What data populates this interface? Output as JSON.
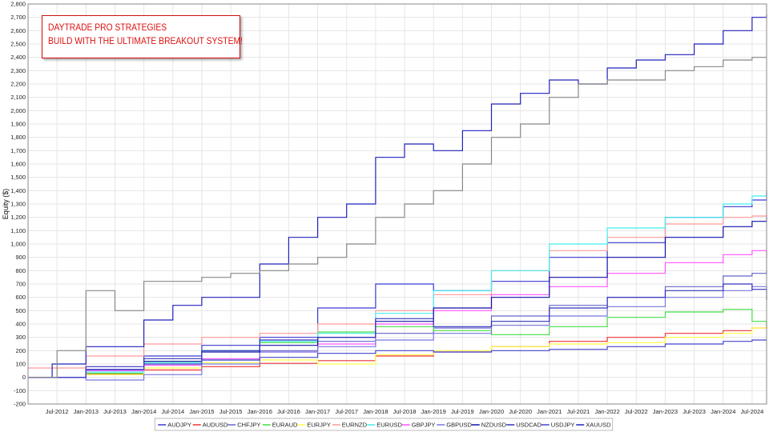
{
  "banner": {
    "line1": "DAYTRADE PRO STRATEGIES",
    "line2": "BUILD WITH THE ULTIMATE BREAKOUT SYSTEM!",
    "color": "#dd1111"
  },
  "chart_data": {
    "type": "line",
    "title": "",
    "xlabel": "",
    "ylabel": "Equity ($)",
    "ylim": [
      -200,
      2800
    ],
    "yticks": [
      -200,
      -100,
      0,
      100,
      200,
      300,
      400,
      500,
      600,
      700,
      800,
      900,
      1000,
      1100,
      1200,
      1300,
      1400,
      1500,
      1600,
      1700,
      1800,
      1900,
      2000,
      2100,
      2200,
      2300,
      2400,
      2500,
      2600,
      2700,
      2800
    ],
    "ytick_labels": [
      "-200",
      "-100",
      "0",
      "100",
      "200",
      "300",
      "400",
      "500",
      "600",
      "700",
      "800",
      "900",
      "1,000",
      "1,100",
      "1,200",
      "1,300",
      "1,400",
      "1,500",
      "1,600",
      "1,700",
      "1,800",
      "1,900",
      "2,000",
      "2,100",
      "2,200",
      "2,300",
      "2,400",
      "2,500",
      "2,600",
      "2,700",
      "2,800"
    ],
    "xlim": [
      "2012-01",
      "2024-10"
    ],
    "xticks": [
      "2012-07",
      "2013-01",
      "2013-07",
      "2014-01",
      "2014-07",
      "2015-01",
      "2015-07",
      "2016-01",
      "2016-07",
      "2017-01",
      "2017-07",
      "2018-01",
      "2018-07",
      "2019-01",
      "2019-07",
      "2020-01",
      "2020-07",
      "2021-01",
      "2021-07",
      "2022-01",
      "2022-07",
      "2023-01",
      "2023-07",
      "2024-01",
      "2024-07"
    ],
    "xtick_labels": [
      "Jul-2012",
      "Jan-2013",
      "Jul-2013",
      "Jan-2014",
      "Jul-2014",
      "Jan-2015",
      "Jul-2015",
      "Jan-2016",
      "Jul-2016",
      "Jan-2017",
      "Jul-2017",
      "Jan-2018",
      "Jul-2018",
      "Jan-2019",
      "Jul-2019",
      "Jan-2020",
      "Jul-2020",
      "Jan-2021",
      "Jul-2021",
      "Jan-2022",
      "Jul-2022",
      "Jan-2023",
      "Jul-2023",
      "Jan-2024",
      "Jul-2024"
    ],
    "grid": true,
    "legend_position": "bottom",
    "series": [
      {
        "name": "AUDJPY",
        "color": "#3a3ad0",
        "x": [
          "2012-01",
          "2013-01",
          "2014-01",
          "2015-01",
          "2016-01",
          "2017-01",
          "2018-01",
          "2019-01",
          "2020-01",
          "2021-01",
          "2022-01",
          "2023-01",
          "2024-01",
          "2024-07",
          "2024-10"
        ],
        "values": [
          0,
          60,
          160,
          240,
          300,
          520,
          700,
          650,
          720,
          900,
          1010,
          1200,
          1280,
          1330,
          1400
        ]
      },
      {
        "name": "AUDUSD",
        "color": "#ee3333",
        "x": [
          "2012-01",
          "2013-01",
          "2014-01",
          "2015-01",
          "2016-01",
          "2017-01",
          "2018-01",
          "2019-01",
          "2020-01",
          "2021-01",
          "2022-01",
          "2023-01",
          "2024-01",
          "2024-07",
          "2024-10"
        ],
        "values": [
          0,
          25,
          55,
          80,
          105,
          125,
          160,
          190,
          230,
          270,
          300,
          330,
          350,
          370,
          380
        ]
      },
      {
        "name": "CHFJPY",
        "color": "#6666cc",
        "x": [
          "2012-01",
          "2013-01",
          "2014-01",
          "2015-01",
          "2016-01",
          "2017-01",
          "2018-01",
          "2019-01",
          "2020-01",
          "2021-01",
          "2022-01",
          "2023-01",
          "2024-01",
          "2024-07",
          "2024-10"
        ],
        "values": [
          0,
          50,
          100,
          130,
          200,
          270,
          330,
          370,
          460,
          540,
          600,
          680,
          760,
          780,
          800
        ]
      },
      {
        "name": "EURAUD",
        "color": "#44dd44",
        "x": [
          "2012-01",
          "2013-01",
          "2014-01",
          "2015-01",
          "2016-01",
          "2017-01",
          "2018-01",
          "2019-01",
          "2020-01",
          "2021-01",
          "2022-01",
          "2023-01",
          "2024-01",
          "2024-07",
          "2024-10"
        ],
        "values": [
          0,
          30,
          120,
          200,
          260,
          340,
          380,
          350,
          320,
          380,
          450,
          490,
          510,
          420,
          380
        ]
      },
      {
        "name": "EURJPY",
        "color": "#ffff44",
        "x": [
          "2012-01",
          "2013-01",
          "2014-01",
          "2015-01",
          "2016-01",
          "2017-01",
          "2018-01",
          "2019-01",
          "2020-01",
          "2021-01",
          "2022-01",
          "2023-01",
          "2024-01",
          "2024-07",
          "2024-10"
        ],
        "values": [
          0,
          20,
          70,
          110,
          130,
          100,
          170,
          200,
          230,
          250,
          260,
          300,
          330,
          370,
          400
        ]
      },
      {
        "name": "EURNZD",
        "color": "#ff9999",
        "x": [
          "2012-01",
          "2013-01",
          "2014-01",
          "2015-01",
          "2016-01",
          "2017-01",
          "2018-01",
          "2019-01",
          "2020-01",
          "2021-01",
          "2022-01",
          "2023-01",
          "2024-01",
          "2024-07",
          "2024-10"
        ],
        "values": [
          70,
          160,
          250,
          300,
          330,
          400,
          500,
          620,
          800,
          950,
          1050,
          1150,
          1200,
          1210,
          1220
        ]
      },
      {
        "name": "EURUSD",
        "color": "#44eeee",
        "x": [
          "2012-01",
          "2013-01",
          "2014-01",
          "2015-01",
          "2016-01",
          "2017-01",
          "2018-01",
          "2019-01",
          "2020-01",
          "2021-01",
          "2022-01",
          "2023-01",
          "2024-01",
          "2024-07",
          "2024-10"
        ],
        "values": [
          0,
          40,
          110,
          200,
          270,
          330,
          480,
          650,
          800,
          1000,
          1120,
          1200,
          1300,
          1360,
          1380
        ]
      },
      {
        "name": "GBPJPY",
        "color": "#ff55ff",
        "x": [
          "2012-01",
          "2013-01",
          "2014-01",
          "2015-01",
          "2016-01",
          "2017-01",
          "2018-01",
          "2019-01",
          "2020-01",
          "2021-01",
          "2022-01",
          "2023-01",
          "2024-01",
          "2024-07",
          "2024-10"
        ],
        "values": [
          0,
          50,
          90,
          140,
          190,
          250,
          400,
          500,
          620,
          680,
          780,
          860,
          920,
          950,
          900
        ]
      },
      {
        "name": "GBPUSD",
        "color": "#7777dd",
        "x": [
          "2012-01",
          "2013-01",
          "2014-01",
          "2015-01",
          "2016-01",
          "2017-01",
          "2018-01",
          "2019-01",
          "2020-01",
          "2021-01",
          "2022-01",
          "2023-01",
          "2024-01",
          "2024-07",
          "2024-10"
        ],
        "values": [
          0,
          -20,
          20,
          100,
          190,
          230,
          280,
          330,
          390,
          460,
          530,
          600,
          650,
          680,
          660
        ]
      },
      {
        "name": "NZDUSD",
        "color": "#1111aa",
        "x": [
          "2012-01",
          "2013-01",
          "2014-01",
          "2015-01",
          "2016-01",
          "2017-01",
          "2018-01",
          "2019-01",
          "2020-01",
          "2021-01",
          "2022-01",
          "2023-01",
          "2024-01",
          "2024-07",
          "2024-10"
        ],
        "values": [
          0,
          60,
          120,
          190,
          240,
          300,
          420,
          520,
          600,
          750,
          900,
          1050,
          1130,
          1170,
          1200
        ]
      },
      {
        "name": "USDCAD",
        "color": "#3333bb",
        "x": [
          "2012-01",
          "2013-01",
          "2014-01",
          "2015-01",
          "2016-01",
          "2017-01",
          "2018-01",
          "2019-01",
          "2020-01",
          "2021-01",
          "2022-01",
          "2023-01",
          "2024-01",
          "2024-07",
          "2024-10"
        ],
        "values": [
          0,
          80,
          140,
          200,
          280,
          300,
          440,
          380,
          420,
          520,
          600,
          650,
          700,
          660,
          580
        ]
      },
      {
        "name": "USDJPY",
        "color": "#4444cc",
        "x": [
          "2012-01",
          "2013-01",
          "2014-01",
          "2015-01",
          "2016-01",
          "2017-01",
          "2018-01",
          "2019-01",
          "2020-01",
          "2021-01",
          "2022-01",
          "2023-01",
          "2024-01",
          "2024-07",
          "2024-10"
        ],
        "values": [
          0,
          60,
          100,
          130,
          150,
          180,
          200,
          190,
          200,
          210,
          230,
          250,
          270,
          280,
          280
        ]
      },
      {
        "name": "XAUUSD",
        "color": "#2222bb",
        "x": [
          "2012-01",
          "2012-06",
          "2013-01",
          "2014-01",
          "2014-07",
          "2015-01",
          "2016-01",
          "2016-07",
          "2017-01",
          "2017-07",
          "2018-01",
          "2018-07",
          "2019-01",
          "2019-07",
          "2020-01",
          "2020-07",
          "2021-01",
          "2021-07",
          "2022-01",
          "2022-07",
          "2023-01",
          "2023-07",
          "2024-01",
          "2024-07",
          "2024-10"
        ],
        "values": [
          0,
          100,
          230,
          430,
          540,
          600,
          850,
          1050,
          1200,
          1300,
          1650,
          1750,
          1700,
          1850,
          2050,
          2130,
          2230,
          2200,
          2320,
          2380,
          2420,
          2500,
          2600,
          2700,
          2720
        ]
      },
      {
        "name": "",
        "color": "#888888",
        "x": [
          "2012-01",
          "2012-07",
          "2013-01",
          "2013-07",
          "2014-01",
          "2014-07",
          "2015-01",
          "2015-07",
          "2016-01",
          "2016-07",
          "2017-01",
          "2017-07",
          "2018-01",
          "2018-07",
          "2019-01",
          "2019-07",
          "2020-01",
          "2020-07",
          "2021-01",
          "2021-07",
          "2022-01",
          "2022-07",
          "2023-01",
          "2023-07",
          "2024-01",
          "2024-07",
          "2024-10"
        ],
        "values": [
          0,
          200,
          650,
          500,
          720,
          720,
          750,
          780,
          800,
          850,
          900,
          1000,
          1200,
          1300,
          1400,
          1600,
          1800,
          1900,
          2100,
          2200,
          2230,
          2230,
          2300,
          2330,
          2380,
          2400,
          2400
        ]
      }
    ]
  }
}
